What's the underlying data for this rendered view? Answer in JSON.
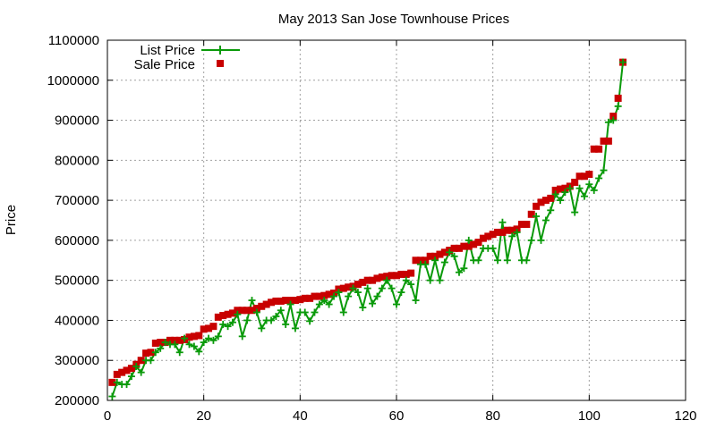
{
  "chart_data": {
    "type": "scatter",
    "title": "May 2013 San Jose Townhouse Prices",
    "xlabel": "",
    "ylabel": "Price",
    "xlim": [
      0,
      120
    ],
    "ylim": [
      200000,
      1100000
    ],
    "x_ticks": [
      "0",
      "20",
      "40",
      "60",
      "80",
      "100",
      "120"
    ],
    "y_ticks": [
      "200000",
      "300000",
      "400000",
      "500000",
      "600000",
      "700000",
      "800000",
      "900000",
      "1000000",
      "1100000"
    ],
    "grid": true,
    "legend_position": "top-left",
    "series": [
      {
        "name": "List Price",
        "style": "line+cross",
        "color": "#0a9a0a",
        "x": [
          1,
          2,
          3,
          4,
          5,
          6,
          7,
          8,
          9,
          10,
          11,
          12,
          13,
          14,
          15,
          16,
          17,
          18,
          19,
          20,
          21,
          22,
          23,
          24,
          25,
          26,
          27,
          28,
          29,
          30,
          31,
          32,
          33,
          34,
          35,
          36,
          37,
          38,
          39,
          40,
          41,
          42,
          43,
          44,
          45,
          46,
          47,
          48,
          49,
          50,
          51,
          52,
          53,
          54,
          55,
          56,
          57,
          58,
          59,
          60,
          61,
          62,
          63,
          64,
          65,
          66,
          67,
          68,
          69,
          70,
          71,
          72,
          73,
          74,
          75,
          76,
          77,
          78,
          79,
          80,
          81,
          82,
          83,
          84,
          85,
          86,
          87,
          88,
          89,
          90,
          91,
          92,
          93,
          94,
          95,
          96,
          97,
          98,
          99,
          100,
          101,
          102,
          103,
          104,
          105,
          106,
          107
        ],
        "values": [
          210000,
          245000,
          240000,
          240000,
          260000,
          285000,
          270000,
          300000,
          300000,
          320000,
          330000,
          345000,
          340000,
          340000,
          320000,
          355000,
          340000,
          335000,
          322000,
          345000,
          355000,
          350000,
          360000,
          390000,
          385000,
          395000,
          415000,
          360000,
          400000,
          450000,
          420000,
          380000,
          400000,
          400000,
          410000,
          425000,
          390000,
          440000,
          380000,
          420000,
          420000,
          398000,
          420000,
          440000,
          450000,
          440000,
          460000,
          470000,
          420000,
          460000,
          480000,
          470000,
          432000,
          480000,
          442000,
          460000,
          480000,
          500000,
          480000,
          440000,
          470000,
          500000,
          490000,
          450000,
          540000,
          540000,
          500000,
          550000,
          500000,
          545000,
          570000,
          560000,
          520000,
          530000,
          600000,
          550000,
          550000,
          580000,
          580000,
          580000,
          550000,
          645000,
          550000,
          610000,
          620000,
          550000,
          550000,
          600000,
          660000,
          600000,
          650000,
          675000,
          715000,
          700000,
          720000,
          730000,
          670000,
          730000,
          710000,
          740000,
          725000,
          755000,
          775000,
          895000,
          900000,
          935000,
          1045000
        ]
      },
      {
        "name": "Sale Price",
        "style": "square",
        "color": "#c80000",
        "x": [
          1,
          2,
          3,
          4,
          5,
          6,
          7,
          8,
          9,
          10,
          11,
          12,
          13,
          14,
          15,
          16,
          17,
          18,
          19,
          20,
          21,
          22,
          23,
          24,
          25,
          26,
          27,
          28,
          29,
          30,
          31,
          32,
          33,
          34,
          35,
          36,
          37,
          38,
          39,
          40,
          41,
          42,
          43,
          44,
          45,
          46,
          47,
          48,
          49,
          50,
          51,
          52,
          53,
          54,
          55,
          56,
          57,
          58,
          59,
          60,
          61,
          62,
          63,
          64,
          65,
          66,
          67,
          68,
          69,
          70,
          71,
          72,
          73,
          74,
          75,
          76,
          77,
          78,
          79,
          80,
          81,
          82,
          83,
          84,
          85,
          86,
          87,
          88,
          89,
          90,
          91,
          92,
          93,
          94,
          95,
          96,
          97,
          98,
          99,
          100,
          101,
          102,
          103,
          104,
          105,
          106,
          107
        ],
        "values": [
          245000,
          265000,
          270000,
          275000,
          280000,
          290000,
          300000,
          318000,
          320000,
          343000,
          345000,
          345000,
          350000,
          350000,
          350000,
          352000,
          358000,
          360000,
          362000,
          378000,
          380000,
          385000,
          408000,
          412000,
          415000,
          418000,
          425000,
          425000,
          425000,
          425000,
          430000,
          435000,
          440000,
          445000,
          448000,
          448000,
          450000,
          450000,
          450000,
          452000,
          455000,
          455000,
          460000,
          460000,
          462000,
          465000,
          468000,
          478000,
          480000,
          483000,
          485000,
          490000,
          495000,
          500000,
          500000,
          505000,
          508000,
          510000,
          512000,
          512000,
          515000,
          515000,
          518000,
          550000,
          550000,
          550000,
          560000,
          560000,
          565000,
          570000,
          575000,
          580000,
          580000,
          585000,
          585000,
          590000,
          595000,
          605000,
          610000,
          615000,
          620000,
          620000,
          625000,
          625000,
          628000,
          640000,
          640000,
          665000,
          685000,
          695000,
          700000,
          705000,
          725000,
          728000,
          730000,
          735000,
          745000,
          760000,
          760000,
          765000,
          828000,
          828000,
          848000,
          848000,
          910000,
          955000,
          1045000
        ]
      }
    ]
  }
}
